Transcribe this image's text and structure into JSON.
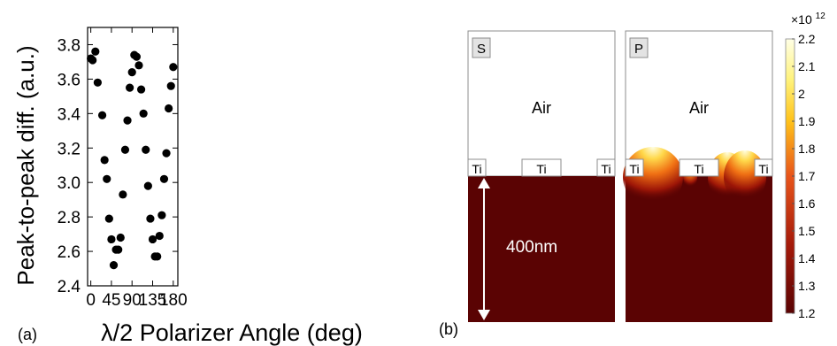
{
  "chart_data": [
    {
      "type": "scatter",
      "panel_label": "(a)",
      "xlabel": "λ/2 Polarizer Angle (deg)",
      "ylabel": "Peak-to-peak diff. (a.u.)",
      "xlim": [
        -7,
        190
      ],
      "ylim": [
        2.4,
        3.9
      ],
      "xticks": [
        0,
        45,
        90,
        135,
        180
      ],
      "yticks": [
        2.4,
        2.6,
        2.8,
        3.0,
        3.2,
        3.4,
        3.6,
        3.8
      ],
      "ytick_labels": [
        "2.4",
        "2.6",
        "2.8",
        "3.0",
        "3.2",
        "3.4",
        "3.6",
        "3.8"
      ],
      "grid": false,
      "points": [
        {
          "x": 0,
          "y": 3.72
        },
        {
          "x": 4,
          "y": 3.71
        },
        {
          "x": 10,
          "y": 3.76
        },
        {
          "x": 15,
          "y": 3.58
        },
        {
          "x": 25,
          "y": 3.39
        },
        {
          "x": 30,
          "y": 3.13
        },
        {
          "x": 35,
          "y": 3.02
        },
        {
          "x": 40,
          "y": 2.79
        },
        {
          "x": 45,
          "y": 2.67
        },
        {
          "x": 50,
          "y": 2.52
        },
        {
          "x": 55,
          "y": 2.61
        },
        {
          "x": 60,
          "y": 2.61
        },
        {
          "x": 65,
          "y": 2.68
        },
        {
          "x": 70,
          "y": 2.93
        },
        {
          "x": 75,
          "y": 3.19
        },
        {
          "x": 80,
          "y": 3.36
        },
        {
          "x": 85,
          "y": 3.55
        },
        {
          "x": 90,
          "y": 3.64
        },
        {
          "x": 95,
          "y": 3.74
        },
        {
          "x": 100,
          "y": 3.73
        },
        {
          "x": 105,
          "y": 3.68
        },
        {
          "x": 110,
          "y": 3.54
        },
        {
          "x": 115,
          "y": 3.4
        },
        {
          "x": 120,
          "y": 3.19
        },
        {
          "x": 125,
          "y": 2.98
        },
        {
          "x": 130,
          "y": 2.79
        },
        {
          "x": 135,
          "y": 2.67
        },
        {
          "x": 140,
          "y": 2.57
        },
        {
          "x": 145,
          "y": 2.57
        },
        {
          "x": 150,
          "y": 2.69
        },
        {
          "x": 155,
          "y": 2.81
        },
        {
          "x": 160,
          "y": 3.02
        },
        {
          "x": 165,
          "y": 3.17
        },
        {
          "x": 170,
          "y": 3.43
        },
        {
          "x": 175,
          "y": 3.56
        },
        {
          "x": 180,
          "y": 3.67
        }
      ],
      "marker_color": "#000000"
    },
    {
      "type": "heatmap",
      "panel_label": "(b)",
      "panels": [
        {
          "tag": "S",
          "top_label": "Air",
          "contact_labels": [
            "Ti",
            "Ti",
            "Ti"
          ],
          "depth_label": "400nm",
          "hotspots": false
        },
        {
          "tag": "P",
          "top_label": "Air",
          "contact_labels": [
            "Ti",
            "Ti",
            "Ti"
          ],
          "hotspots": true
        }
      ],
      "colorbar": {
        "exponent_label": "×10",
        "exponent_power": "12",
        "min": 1.2,
        "max": 2.2,
        "tick_labels": [
          "2.2",
          "2.1",
          "2",
          "1.9",
          "1.8",
          "1.7",
          "1.6",
          "1.5",
          "1.4",
          "1.3",
          "1.2"
        ],
        "colors": [
          "#ffffe6",
          "#fff27a",
          "#ffc21a",
          "#e8541a",
          "#a51a0a",
          "#5a0303"
        ]
      },
      "substrate_color": "#5a0303"
    }
  ]
}
